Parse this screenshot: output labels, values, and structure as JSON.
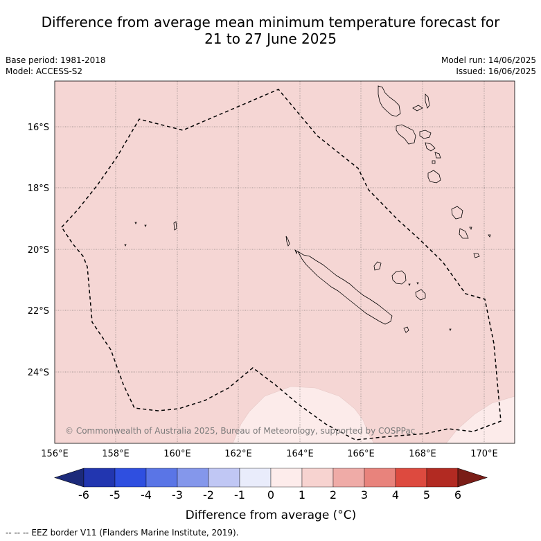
{
  "title_line1": "Difference from average mean minimum temperature forecast for",
  "title_line2": "21 to 27 June 2025",
  "base_period": "Base period: 1981-2018",
  "model": "Model: ACCESS-S2",
  "model_run": "Model run: 14/06/2025",
  "issued": "Issued: 16/06/2025",
  "lon_ticks": [
    "156°E",
    "158°E",
    "160°E",
    "162°E",
    "164°E",
    "166°E",
    "168°E",
    "170°E"
  ],
  "lat_ticks": [
    "16°S",
    "18°S",
    "20°S",
    "22°S",
    "24°S"
  ],
  "copyright": "© Commonwealth of Australia 2025, Bureau of Meteorology, supported by COSPPac",
  "colorbar": {
    "ticks": [
      "-6",
      "-5",
      "-4",
      "-3",
      "-2",
      "-1",
      "0",
      "1",
      "2",
      "3",
      "4",
      "5",
      "6"
    ],
    "colors": [
      "#1c2a7a",
      "#2236b0",
      "#2f4fe0",
      "#5a75e6",
      "#8497eb",
      "#c0c7f4",
      "#e9ecfb",
      "#fdeceb",
      "#f7d3d0",
      "#efaba7",
      "#e8837c",
      "#dd4a3f",
      "#b22a22",
      "#7a1d17"
    ],
    "label": "Difference from average (°C)"
  },
  "map_colors": {
    "anomaly_1_2": "#f5d6d4",
    "anomaly_0_1": "#fcebea"
  },
  "footnote": "-- -- -- EEZ border V11 (Flanders Marine Institute, 2019)."
}
